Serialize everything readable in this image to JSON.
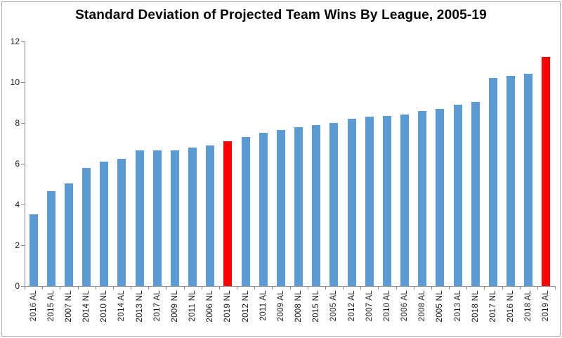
{
  "chart_data": {
    "type": "bar",
    "title": "Standard Deviation of Projected Team Wins By League, 2005-19",
    "xlabel": "",
    "ylabel": "",
    "ylim": [
      0,
      12
    ],
    "yticks": [
      0,
      2,
      4,
      6,
      8,
      10,
      12
    ],
    "grid": "off",
    "legend": "none",
    "bar_color": "#5b9bd5",
    "highlight_color": "#ff0000",
    "highlighted_categories": [
      "2019 NL",
      "2019 AL"
    ],
    "categories": [
      "2016 AL",
      "2015 AL",
      "2007 NL",
      "2014 NL",
      "2010 NL",
      "2014 AL",
      "2013 NL",
      "2017 AL",
      "2009 NL",
      "2011 NL",
      "2006 NL",
      "2019 NL",
      "2012 NL",
      "2011 AL",
      "2009 AL",
      "2008 NL",
      "2015 NL",
      "2005 AL",
      "2012 AL",
      "2007 AL",
      "2010 AL",
      "2006 AL",
      "2008 AL",
      "2005 NL",
      "2013 AL",
      "2018 NL",
      "2017 NL",
      "2016 NL",
      "2018 AL",
      "2019 AL"
    ],
    "values": [
      3.5,
      4.65,
      5.05,
      5.8,
      6.1,
      6.25,
      6.65,
      6.65,
      6.65,
      6.8,
      6.9,
      7.1,
      7.3,
      7.5,
      7.65,
      7.8,
      7.9,
      8.0,
      8.2,
      8.3,
      8.35,
      8.4,
      8.6,
      8.7,
      8.9,
      9.05,
      10.2,
      10.3,
      10.4,
      11.25
    ]
  }
}
